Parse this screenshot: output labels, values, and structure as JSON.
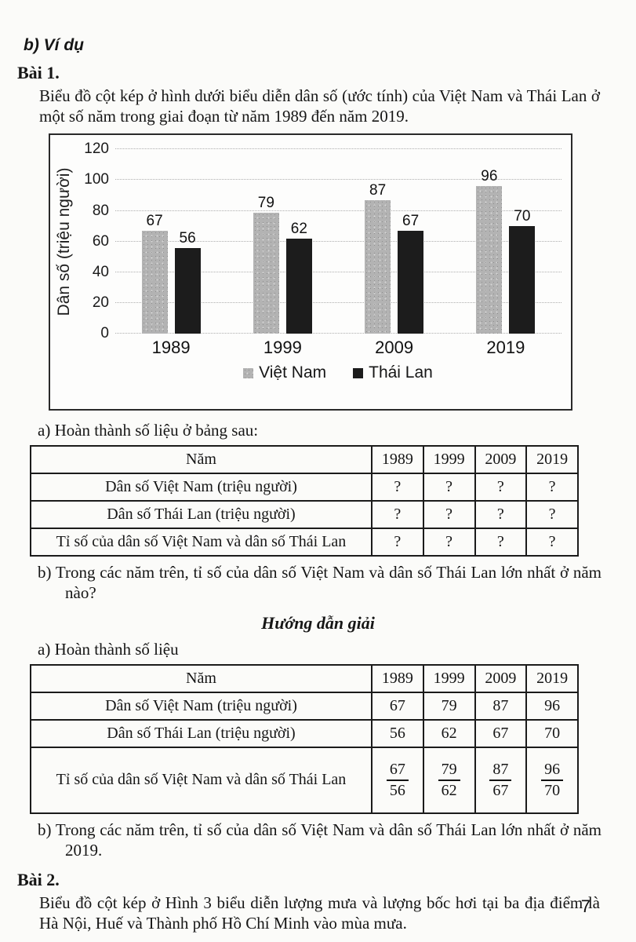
{
  "headings": {
    "example": "b) Ví dụ",
    "exercise1": "Bài 1.",
    "solution": "Hướng dẫn giải",
    "exercise2": "Bài 2."
  },
  "exercise1": {
    "intro": "Biểu đồ cột kép ở hình dưới biểu diễn dân số (ước tính) của Việt Nam và Thái Lan ở một số năm trong giai đoạn từ năm 1989 đến năm 2019.",
    "question_a": "a) Hoàn thành số liệu ở bảng sau:",
    "question_b": "b) Trong các năm trên, tỉ số của dân số Việt Nam và dân số Thái Lan lớn nhất ở năm nào?",
    "solution_a": "a) Hoàn thành số liệu",
    "solution_b": "b) Trong các năm trên, tỉ số của dân số Việt Nam và dân số Thái Lan lớn nhất ở năm 2019."
  },
  "chart_data": {
    "type": "bar",
    "categories": [
      "1989",
      "1999",
      "2009",
      "2019"
    ],
    "series": [
      {
        "name": "Việt Nam",
        "values": [
          67,
          79,
          87,
          96
        ],
        "color": "#b3b3b3"
      },
      {
        "name": "Thái Lan",
        "values": [
          56,
          62,
          67,
          70
        ],
        "color": "#1c1c1c"
      }
    ],
    "title": "",
    "xlabel": "",
    "ylabel": "Dân số (triệu người)",
    "yticks": [
      0,
      20,
      40,
      60,
      80,
      100,
      120
    ],
    "ylim": [
      0,
      120
    ],
    "grid": "horizontal-dotted",
    "legend_position": "bottom",
    "value_labels": true
  },
  "table_question": {
    "header": [
      "Năm",
      "1989",
      "1999",
      "2009",
      "2019"
    ],
    "rows": [
      {
        "label": "Dân số Việt Nam (triệu người)",
        "values": [
          "?",
          "?",
          "?",
          "?"
        ]
      },
      {
        "label": "Dân số Thái Lan (triệu người)",
        "values": [
          "?",
          "?",
          "?",
          "?"
        ]
      },
      {
        "label": "Tỉ số của dân số Việt Nam và dân số Thái Lan",
        "values": [
          "?",
          "?",
          "?",
          "?"
        ]
      }
    ]
  },
  "table_solution": {
    "header": [
      "Năm",
      "1989",
      "1999",
      "2009",
      "2019"
    ],
    "rows": [
      {
        "label": "Dân số Việt Nam (triệu người)",
        "values": [
          "67",
          "79",
          "87",
          "96"
        ]
      },
      {
        "label": "Dân số Thái Lan (triệu người)",
        "values": [
          "56",
          "62",
          "67",
          "70"
        ]
      },
      {
        "label": "Tỉ số của dân số Việt Nam và dân số Thái Lan",
        "fractions": [
          {
            "num": "67",
            "den": "56"
          },
          {
            "num": "79",
            "den": "62"
          },
          {
            "num": "87",
            "den": "67"
          },
          {
            "num": "96",
            "den": "70"
          }
        ]
      }
    ]
  },
  "exercise2": {
    "intro": "Biểu đồ cột kép ở Hình 3 biểu diễn lượng mưa và lượng bốc hơi tại ba địa điểm là Hà Nội, Huế và Thành phố Hồ Chí Minh vào mùa mưa."
  },
  "page_number": "7"
}
